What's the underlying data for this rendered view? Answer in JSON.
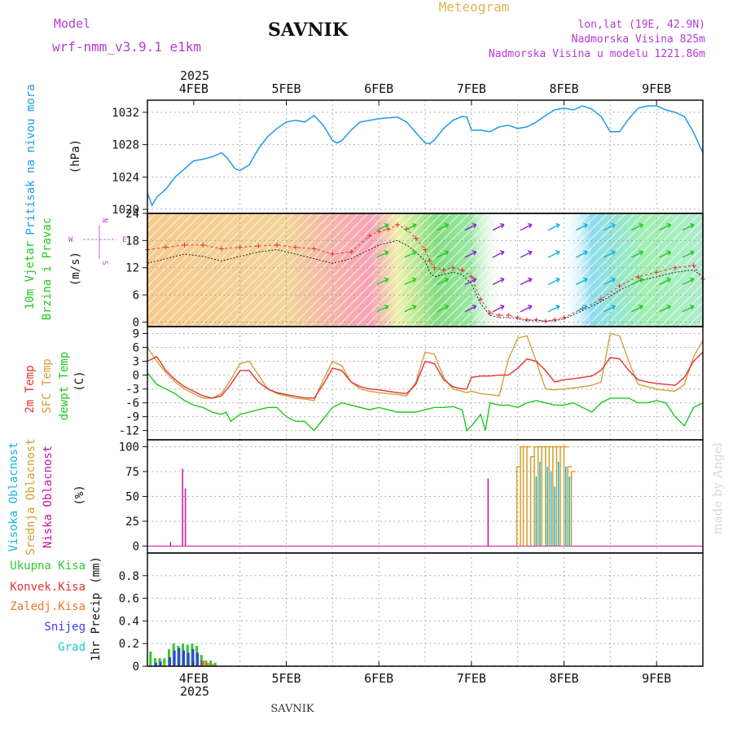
{
  "header": {
    "model_label": "Model",
    "model_name": "wrf-nmm_v3.9.1 e1km",
    "location": "SAVNIK",
    "meteogram_label": "Meteogram",
    "coords": "lon,lat (19E, 42.9N)",
    "elevation": "Nadmorska Visina 825m",
    "model_elevation": "Nadmorska Visina u modelu 1221.86m",
    "watermark": "made by Angel",
    "footer_location": "SAVNIK"
  },
  "x_axis": {
    "year_label": "2025",
    "day_labels": [
      "4FEB",
      "5FEB",
      "6FEB",
      "7FEB",
      "8FEB",
      "9FEB"
    ],
    "x_range": [
      3.5,
      9.5
    ],
    "day_values": [
      4,
      5,
      6,
      7,
      8,
      9
    ]
  },
  "colors": {
    "pressure": "#1e9be6",
    "temp2m": "#e63232",
    "sfc_temp": "#d2a03c",
    "dewpt": "#1ec81e",
    "high_cloud": "#14b4dc",
    "mid_cloud": "#d2a028",
    "low_cloud": "#c814a0",
    "total_precip": "#32c832",
    "conv_precip": "#e63232",
    "frozen_precip": "#f07828",
    "snow": "#3c3ce6",
    "graupel": "#1ec8c8",
    "wind_axis_label": "#b43cd2",
    "grid": "#999999"
  },
  "chart_data": [
    {
      "type": "line",
      "panel": "pressure",
      "ylabel": "Pritisak na nivou mora",
      "unit": "(hPa)",
      "ylim": [
        1019.5,
        1033.5
      ],
      "yticks": [
        1020,
        1024,
        1028,
        1032
      ],
      "grid": true,
      "series": [
        {
          "values_x": [
            3.5,
            3.55,
            3.6,
            3.7,
            3.8,
            3.9,
            4.0,
            4.1,
            4.2,
            4.3,
            4.35,
            4.45,
            4.5,
            4.6,
            4.7,
            4.8,
            4.9,
            5.0,
            5.1,
            5.2,
            5.3,
            5.4,
            5.5,
            5.55,
            5.6,
            5.7,
            5.8,
            5.9,
            6.0,
            6.1,
            6.2,
            6.3,
            6.4,
            6.5,
            6.55,
            6.6,
            6.7,
            6.8,
            6.9,
            6.95,
            7.0,
            7.1,
            7.2,
            7.3,
            7.4,
            7.5,
            7.6,
            7.7,
            7.8,
            7.9,
            8.0,
            8.1,
            8.2,
            8.3,
            8.4,
            8.5,
            8.6,
            8.7,
            8.8,
            8.9,
            9.0,
            9.1,
            9.2,
            9.3,
            9.4,
            9.5
          ],
          "values": [
            1022,
            1020.5,
            1021.5,
            1022.5,
            1024,
            1025,
            1026,
            1026.2,
            1026.5,
            1027,
            1026.5,
            1025,
            1024.8,
            1025.5,
            1027.5,
            1029,
            1030,
            1030.8,
            1031,
            1030.8,
            1031.6,
            1030.4,
            1028.5,
            1028.2,
            1028.5,
            1029.8,
            1030.8,
            1031,
            1031.2,
            1031.3,
            1031.4,
            1030.8,
            1029.5,
            1028.2,
            1028.1,
            1028.6,
            1030,
            1031,
            1031.5,
            1031.4,
            1029.8,
            1029.8,
            1029.6,
            1030.2,
            1030.4,
            1030,
            1030.2,
            1030.8,
            1031.6,
            1032.3,
            1032.5,
            1032.3,
            1032.8,
            1032.4,
            1031.5,
            1029.6,
            1029.6,
            1031.2,
            1032.5,
            1032.8,
            1032.8,
            1032.3,
            1032,
            1031.5,
            1029.5,
            1027
          ]
        }
      ]
    },
    {
      "type": "line",
      "panel": "wind",
      "ylabel_1": "10m Vjetar",
      "ylabel_2": "Brzina i Pravac",
      "unit": "(m/s)",
      "compass": {
        "north": "N",
        "west": "W",
        "east": "E",
        "south": "S"
      },
      "ylim": [
        -1,
        24
      ],
      "yticks": [
        0,
        6,
        12,
        18,
        24
      ],
      "grid": true,
      "series": [
        {
          "name": "gust",
          "values_x": [
            3.5,
            3.7,
            3.9,
            4.1,
            4.3,
            4.5,
            4.7,
            4.9,
            5.1,
            5.3,
            5.5,
            5.7,
            5.9,
            6.0,
            6.1,
            6.2,
            6.3,
            6.4,
            6.5,
            6.55,
            6.6,
            6.7,
            6.8,
            6.9,
            7.0,
            7.1,
            7.2,
            7.3,
            7.4,
            7.5,
            7.6,
            7.7,
            7.8,
            7.9,
            8.0,
            8.2,
            8.4,
            8.6,
            8.8,
            9.0,
            9.2,
            9.4,
            9.5
          ],
          "values": [
            16,
            16.5,
            17,
            17,
            16.2,
            16.5,
            16.8,
            17,
            16.5,
            16.2,
            15,
            15.5,
            19,
            20,
            20.5,
            21.5,
            20.5,
            18.5,
            16,
            13.5,
            12,
            11.5,
            12,
            11.5,
            10,
            5,
            2,
            1.5,
            1.5,
            1,
            0.5,
            0.5,
            0.2,
            0.5,
            1,
            3,
            5,
            8,
            10,
            11,
            12,
            12.5,
            9.5
          ]
        },
        {
          "name": "speed",
          "values_x": [
            3.5,
            3.7,
            3.9,
            4.1,
            4.3,
            4.5,
            4.7,
            4.9,
            5.1,
            5.3,
            5.5,
            5.7,
            5.9,
            6.0,
            6.1,
            6.2,
            6.3,
            6.4,
            6.5,
            6.55,
            6.6,
            6.7,
            6.8,
            6.9,
            7.0,
            7.1,
            7.2,
            7.3,
            7.4,
            7.5,
            7.6,
            7.7,
            7.8,
            7.9,
            8.0,
            8.2,
            8.4,
            8.6,
            8.8,
            9.0,
            9.2,
            9.4,
            9.5
          ],
          "values": [
            13,
            14,
            15,
            14.5,
            13.5,
            14.5,
            15.5,
            16,
            15,
            14,
            13,
            14,
            16,
            17,
            17.5,
            18,
            17,
            15.5,
            13.5,
            11,
            10,
            10.5,
            11,
            10.5,
            8.5,
            4,
            1.5,
            1,
            1,
            0.7,
            0.3,
            0.3,
            0.2,
            0.3,
            0.7,
            2.5,
            4.5,
            7,
            9,
            10,
            11,
            11.5,
            10
          ]
        }
      ]
    },
    {
      "type": "line",
      "panel": "temperature",
      "ylabel_1": "2m Temp",
      "ylabel_2": "SFC Temp",
      "ylabel_3": "dewpt Temp",
      "unit": "(C)",
      "ylim": [
        -14,
        10.5
      ],
      "yticks": [
        -12,
        -9,
        -6,
        -3,
        0,
        3,
        6,
        9
      ],
      "grid": true,
      "series": [
        {
          "name": "SFC Temp",
          "values_x": [
            3.5,
            3.6,
            3.7,
            3.8,
            3.9,
            4.0,
            4.1,
            4.2,
            4.3,
            4.4,
            4.5,
            4.6,
            4.7,
            4.8,
            4.9,
            5.0,
            5.1,
            5.2,
            5.3,
            5.4,
            5.5,
            5.6,
            5.7,
            5.8,
            5.9,
            6.0,
            6.1,
            6.2,
            6.3,
            6.4,
            6.5,
            6.6,
            6.7,
            6.8,
            6.9,
            6.95,
            7.0,
            7.1,
            7.2,
            7.3,
            7.4,
            7.5,
            7.6,
            7.7,
            7.8,
            7.9,
            8.0,
            8.1,
            8.2,
            8.3,
            8.4,
            8.5,
            8.6,
            8.7,
            8.8,
            8.9,
            9.0,
            9.1,
            9.2,
            9.3,
            9.4,
            9.5
          ],
          "values": [
            6,
            3,
            0.5,
            -1.5,
            -3,
            -4,
            -5,
            -5,
            -4,
            -1,
            2.5,
            3,
            0,
            -3,
            -4,
            -4.5,
            -5,
            -5.2,
            -5.5,
            -1,
            3,
            2,
            -1.5,
            -3,
            -3.5,
            -3.8,
            -4,
            -4.2,
            -4.5,
            -1.5,
            5,
            4.5,
            -0.5,
            -3,
            -3.5,
            -3.8,
            -3.5,
            -4,
            -4.2,
            -4.5,
            3.5,
            8,
            8.5,
            3,
            -3,
            -3.2,
            -3,
            -2.8,
            -2.5,
            -2.2,
            -1.5,
            9,
            8.5,
            3,
            -2,
            -2.5,
            -3,
            -3.3,
            -3.5,
            -2,
            4,
            7.5
          ]
        },
        {
          "name": "2m Temp",
          "values_x": [
            3.5,
            3.6,
            3.7,
            3.8,
            3.9,
            4.0,
            4.1,
            4.2,
            4.3,
            4.4,
            4.5,
            4.6,
            4.7,
            4.8,
            4.9,
            5.0,
            5.1,
            5.2,
            5.3,
            5.4,
            5.5,
            5.6,
            5.7,
            5.8,
            5.9,
            6.0,
            6.1,
            6.2,
            6.3,
            6.4,
            6.5,
            6.6,
            6.7,
            6.8,
            6.9,
            6.95,
            7.0,
            7.1,
            7.2,
            7.3,
            7.4,
            7.5,
            7.6,
            7.7,
            7.8,
            7.9,
            8.0,
            8.1,
            8.2,
            8.3,
            8.4,
            8.5,
            8.6,
            8.7,
            8.8,
            8.9,
            9.0,
            9.1,
            9.2,
            9.3,
            9.4,
            9.5
          ],
          "values": [
            3,
            4,
            1,
            -1,
            -2.5,
            -3.5,
            -4.5,
            -5,
            -4.5,
            -2,
            1,
            1,
            -1.5,
            -3,
            -3.8,
            -4.2,
            -4.6,
            -4.9,
            -5,
            -2,
            1.5,
            1,
            -1.5,
            -2.5,
            -3,
            -3.2,
            -3.5,
            -3.8,
            -4,
            -2,
            3,
            2.5,
            -1,
            -2.5,
            -3,
            -3,
            -0.5,
            -0.2,
            -0.2,
            0,
            0,
            1.5,
            3.5,
            3,
            1,
            -1.5,
            -1,
            -0.8,
            -0.5,
            -0.2,
            1,
            3.8,
            3.5,
            1,
            -1,
            -1.5,
            -1.8,
            -2,
            -2.2,
            -0.5,
            3,
            5
          ]
        },
        {
          "name": "dewpt Temp",
          "values_x": [
            3.5,
            3.6,
            3.7,
            3.8,
            3.9,
            4.0,
            4.1,
            4.2,
            4.3,
            4.35,
            4.4,
            4.5,
            4.6,
            4.7,
            4.8,
            4.9,
            5.0,
            5.1,
            5.2,
            5.3,
            5.4,
            5.5,
            5.6,
            5.7,
            5.8,
            5.9,
            6.0,
            6.1,
            6.2,
            6.3,
            6.4,
            6.5,
            6.6,
            6.7,
            6.8,
            6.9,
            6.95,
            7.0,
            7.1,
            7.15,
            7.2,
            7.3,
            7.4,
            7.5,
            7.6,
            7.7,
            7.8,
            7.9,
            8.0,
            8.1,
            8.2,
            8.3,
            8.4,
            8.5,
            8.6,
            8.7,
            8.8,
            8.9,
            9.0,
            9.1,
            9.2,
            9.3,
            9.4,
            9.5
          ],
          "values": [
            0.5,
            -2,
            -3,
            -4,
            -5.5,
            -6.5,
            -7,
            -8,
            -8.5,
            -8,
            -10,
            -8.5,
            -8,
            -7.5,
            -7,
            -7,
            -9,
            -10,
            -10,
            -12,
            -9.5,
            -7,
            -6,
            -6.5,
            -7,
            -7.5,
            -7,
            -7.5,
            -8,
            -8,
            -8,
            -7.5,
            -7,
            -7,
            -6.8,
            -7.5,
            -12,
            -11,
            -8.5,
            -12,
            -6,
            -6.5,
            -6.5,
            -7,
            -6,
            -5.5,
            -6,
            -6.5,
            -6.5,
            -6,
            -7,
            -8,
            -6,
            -5,
            -5,
            -5,
            -6,
            -6,
            -5.5,
            -6,
            -9,
            -11,
            -7,
            -6
          ]
        }
      ]
    },
    {
      "type": "bar",
      "panel": "clouds",
      "ylabel_1": "Visoka Oblacnost",
      "ylabel_2": "Srednja Oblacnost",
      "ylabel_3": "Niska Oblacnost",
      "unit": "(%)",
      "ylim": [
        -7,
        107
      ],
      "yticks": [
        0,
        25,
        50,
        75,
        100
      ],
      "grid": true,
      "series": [
        {
          "name": "Niska Oblacnost",
          "x": [
            3.75,
            3.88,
            3.91,
            7.18
          ],
          "values": [
            4,
            78,
            58,
            68
          ]
        },
        {
          "name": "Srednja Oblacnost",
          "x": [
            7.49,
            7.53,
            7.56,
            7.6,
            7.64,
            7.68,
            7.72,
            7.76,
            7.8,
            7.84,
            7.88,
            7.92,
            7.96,
            8.0,
            8.04,
            8.08
          ],
          "values": [
            80,
            100,
            100,
            100,
            90,
            100,
            100,
            100,
            100,
            100,
            100,
            100,
            100,
            100,
            80,
            75
          ]
        },
        {
          "name": "Visoka Oblacnost",
          "x": [
            7.7,
            7.74,
            7.82,
            7.86,
            7.9,
            7.94,
            8.02,
            8.06
          ],
          "values": [
            70,
            85,
            80,
            75,
            60,
            85,
            80,
            70
          ]
        }
      ]
    },
    {
      "type": "bar",
      "panel": "precipitation",
      "ylabel": "1hr Precip",
      "unit": "(mm)",
      "legend": [
        "Ukupna Kisa",
        "Konvek.Kisa",
        "Zaledj.Kisa",
        "Snijeg",
        "Grad"
      ],
      "ylim": [
        0,
        1
      ],
      "yticks": [
        0,
        0.2,
        0.4,
        0.6,
        0.8
      ],
      "grid": true,
      "series": [
        {
          "name": "Ukupna Kisa",
          "x": [
            3.52,
            3.57,
            3.62,
            3.67,
            3.72,
            3.77,
            3.82,
            3.87,
            3.92,
            3.97,
            4.02,
            4.07,
            4.12,
            4.17,
            4.22
          ],
          "values": [
            0.13,
            0.07,
            0.07,
            0.07,
            0.15,
            0.2,
            0.18,
            0.2,
            0.19,
            0.2,
            0.18,
            0.1,
            0.05,
            0.05,
            0.03
          ]
        },
        {
          "name": "Snijeg",
          "x": [
            3.57,
            3.62,
            3.72,
            3.77,
            3.82,
            3.87,
            3.92,
            3.97,
            4.02,
            4.07
          ],
          "values": [
            0.03,
            0.04,
            0.08,
            0.14,
            0.16,
            0.14,
            0.12,
            0.15,
            0.12,
            0.05
          ]
        },
        {
          "name": "Zaledj.Kisa",
          "x": [
            4.09,
            4.14,
            4.19
          ],
          "values": [
            0.05,
            0.03,
            0.02
          ]
        }
      ]
    }
  ]
}
